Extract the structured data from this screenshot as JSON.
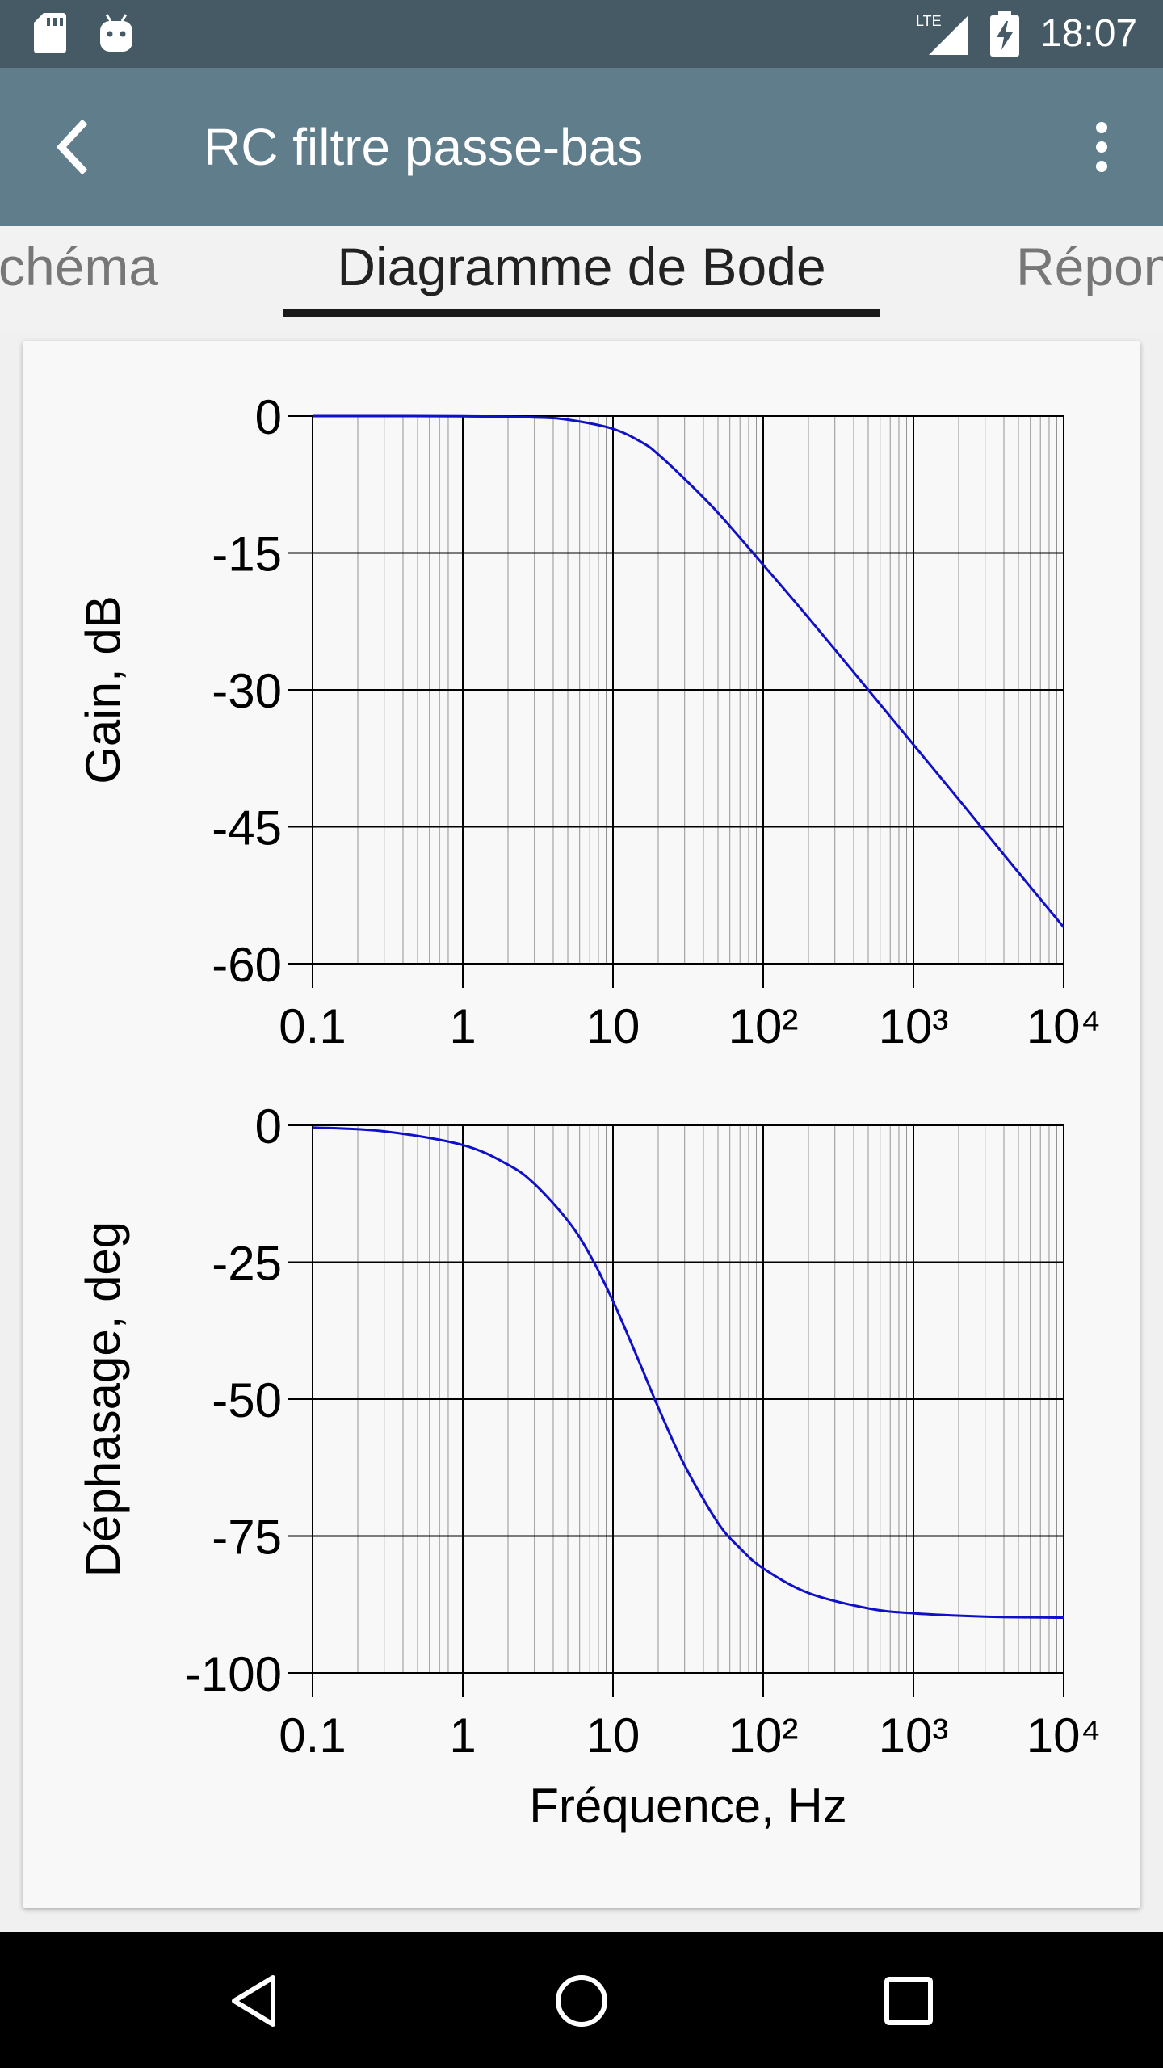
{
  "status_bar": {
    "time": "18:07",
    "network": "LTE",
    "icons": [
      "sd-card-icon",
      "android-debug-icon",
      "signal-icon",
      "battery-charging-icon"
    ]
  },
  "app_bar": {
    "title": "RC filtre passe-bas",
    "icons": [
      "back-arrow-icon",
      "overflow-menu-icon"
    ]
  },
  "tabs": [
    {
      "label": "Schéma",
      "state": "partial-left"
    },
    {
      "label": "Diagramme de Bode",
      "state": "active"
    },
    {
      "label": "Réponse",
      "state": "partial-right"
    }
  ],
  "colors": {
    "status_bar": "#455a64",
    "app_bar": "#607d8b",
    "curve": "#1010c8",
    "grid": "#000000"
  },
  "chart_data": [
    {
      "type": "line",
      "xscale": "log",
      "xlim": [
        0.1,
        10000
      ],
      "xticks": [
        0.1,
        1,
        10,
        100,
        1000,
        10000
      ],
      "xtick_labels": [
        "0.1",
        "1",
        "10",
        "10²",
        "10³",
        "10⁴"
      ],
      "ylabel": "Gain, dB",
      "ylim": [
        -60,
        0
      ],
      "yticks": [
        0,
        -15,
        -30,
        -45,
        -60
      ],
      "grid": true,
      "series": [
        {
          "x": [
            0.1,
            1,
            3,
            5,
            10,
            16,
            20,
            30,
            50,
            100,
            200,
            500,
            1000,
            2000,
            5000,
            10000
          ],
          "y": [
            0,
            -0.02,
            -0.15,
            -0.4,
            -1.4,
            -3.0,
            -4.2,
            -6.9,
            -10.6,
            -16.3,
            -22.1,
            -30.0,
            -36.0,
            -42.0,
            -50.0,
            -56.0
          ]
        }
      ]
    },
    {
      "type": "line",
      "xscale": "log",
      "xlim": [
        0.1,
        10000
      ],
      "xticks": [
        0.1,
        1,
        10,
        100,
        1000,
        10000
      ],
      "xtick_labels": [
        "0.1",
        "1",
        "10",
        "10²",
        "10³",
        "10⁴"
      ],
      "xlabel": "Fréquence, Hz",
      "ylabel": "Déphasage, deg",
      "ylim": [
        -100,
        0
      ],
      "yticks": [
        0,
        -25,
        -50,
        -75,
        -100
      ],
      "grid": true,
      "series": [
        {
          "x": [
            0.1,
            0.3,
            1,
            2,
            3,
            5,
            7,
            10,
            15,
            20,
            30,
            50,
            70,
            100,
            200,
            500,
            1000,
            3000,
            10000
          ],
          "y": [
            -0.4,
            -1.1,
            -3.6,
            -7.2,
            -10.7,
            -17.4,
            -23.6,
            -32.1,
            -43.3,
            -51.5,
            -62.1,
            -72.6,
            -77.2,
            -80.9,
            -85.4,
            -88.2,
            -89.1,
            -89.7,
            -89.9
          ]
        }
      ]
    }
  ],
  "nav_bar": {
    "icons": [
      "back-triangle-icon",
      "home-circle-icon",
      "recents-square-icon"
    ]
  }
}
